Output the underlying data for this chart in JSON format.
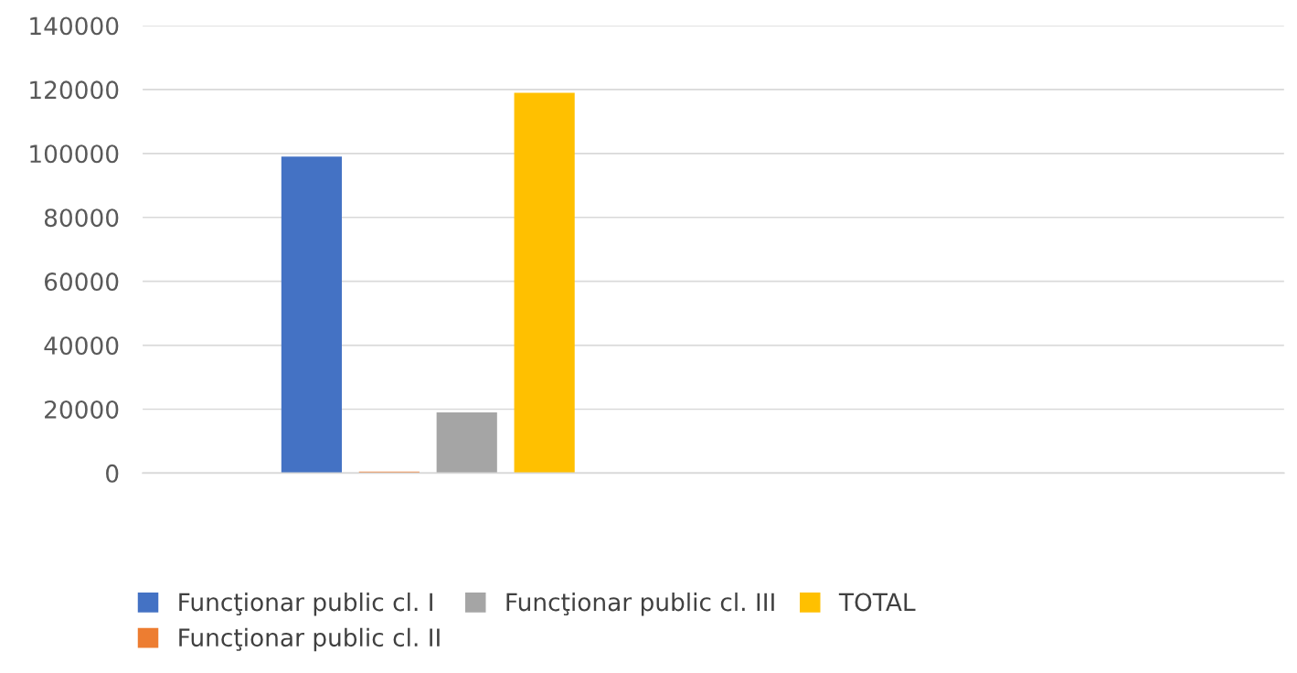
{
  "chart_data": {
    "type": "bar",
    "categories": [
      null,
      null
    ],
    "series": [
      {
        "name": "Funcţionar public cl. I",
        "color": "#4472c4",
        "values": [
          99000,
          null
        ]
      },
      {
        "name": "Funcţionar public cl. II",
        "color": "#ed7d31",
        "values": [
          500,
          null
        ]
      },
      {
        "name": "Funcţionar public cl. III",
        "color": "#a5a5a5",
        "values": [
          19000,
          null
        ]
      },
      {
        "name": "TOTAL",
        "color": "#ffc000",
        "values": [
          119000,
          null
        ]
      }
    ],
    "ylim": [
      0,
      140000
    ],
    "yticks": [
      0,
      20000,
      40000,
      60000,
      80000,
      100000,
      120000,
      140000
    ],
    "grid": "y",
    "legend": "bottom"
  }
}
